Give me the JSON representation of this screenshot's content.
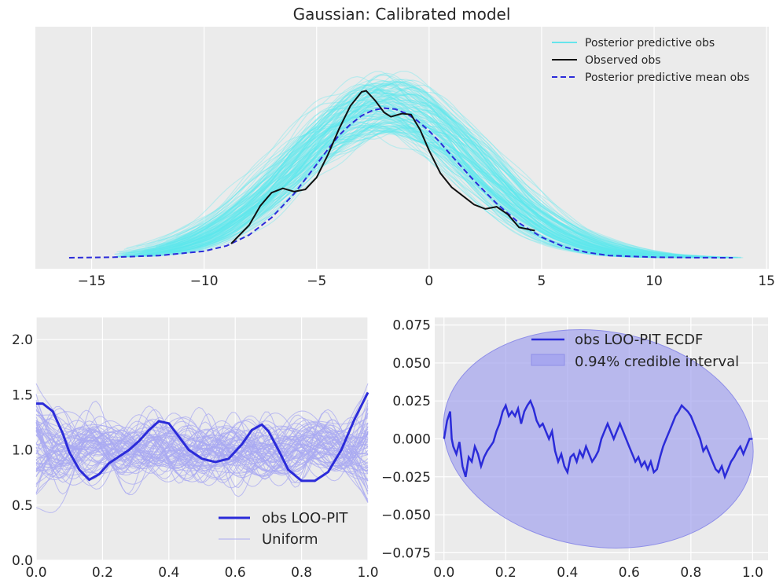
{
  "chart_data": [
    {
      "type": "line",
      "title": "Gaussian: Calibrated model",
      "xlabel": "",
      "ylabel": "",
      "xlim": [
        -17.5,
        15.1
      ],
      "xticks": [
        -15,
        -10,
        -5,
        0,
        5,
        10,
        15
      ],
      "xtick_labels": [
        "−15",
        "−10",
        "−5",
        "0",
        "5",
        "10",
        "15"
      ],
      "y_tick_labels_shown": false,
      "grid": true,
      "legend_placement": "top-right",
      "legend": [
        {
          "label": "Posterior predictive obs",
          "color": "#66e5ec",
          "style": "solid"
        },
        {
          "label": "Observed obs",
          "color": "#000000",
          "style": "solid"
        },
        {
          "label": "Posterior predictive mean obs",
          "color": "#2b2bd9",
          "style": "dashed"
        }
      ],
      "series": [
        {
          "name": "Posterior predictive mean obs",
          "x": [
            -16.0,
            -14,
            -12,
            -10,
            -9,
            -8,
            -7,
            -6,
            -5,
            -4.5,
            -4,
            -3.5,
            -3,
            -2.5,
            -2,
            -1.5,
            -1,
            -0.5,
            0,
            0.5,
            1,
            2,
            3,
            4,
            5,
            6,
            7,
            8,
            10,
            12,
            13.5
          ],
          "y": [
            0.0,
            0.0005,
            0.002,
            0.006,
            0.011,
            0.021,
            0.037,
            0.059,
            0.086,
            0.1,
            0.113,
            0.123,
            0.131,
            0.136,
            0.138,
            0.137,
            0.133,
            0.126,
            0.117,
            0.106,
            0.094,
            0.071,
            0.05,
            0.032,
            0.019,
            0.01,
            0.005,
            0.002,
            0.0005,
            0.0001,
            0.0
          ]
        },
        {
          "name": "Observed obs",
          "x": [
            -8.8,
            -8,
            -7.5,
            -7,
            -6.5,
            -6,
            -5.5,
            -5,
            -4.5,
            -4,
            -3.5,
            -3,
            -2.8,
            -2.4,
            -2,
            -1.7,
            -1.2,
            -0.8,
            -0.4,
            0,
            0.5,
            1,
            1.5,
            2,
            2.5,
            3,
            3.5,
            4,
            4.7
          ],
          "y": [
            0.013,
            0.03,
            0.048,
            0.06,
            0.064,
            0.061,
            0.063,
            0.074,
            0.095,
            0.119,
            0.14,
            0.153,
            0.154,
            0.145,
            0.134,
            0.13,
            0.133,
            0.132,
            0.118,
            0.099,
            0.078,
            0.065,
            0.057,
            0.049,
            0.045,
            0.047,
            0.04,
            0.028,
            0.025
          ]
        }
      ],
      "posterior_predictive_band": {
        "name": "Posterior predictive obs",
        "description_only": true
      }
    },
    {
      "type": "line",
      "title": "",
      "xlabel": "",
      "ylabel": "",
      "xlim": [
        0,
        1
      ],
      "ylim": [
        0,
        2.2
      ],
      "xticks": [
        0.0,
        0.2,
        0.4,
        0.6,
        0.8,
        1.0
      ],
      "xtick_labels": [
        "0.0",
        "0.2",
        "0.4",
        "0.6",
        "0.8",
        "1.0"
      ],
      "yticks": [
        0.0,
        0.5,
        1.0,
        1.5,
        2.0
      ],
      "ytick_labels": [
        "0.0",
        "0.5",
        "1.0",
        "1.5",
        "2.0"
      ],
      "grid": true,
      "legend_placement": "bottom-right",
      "legend": [
        {
          "label": "obs LOO-PIT",
          "color": "#2b2bd9",
          "style": "solid-thick"
        },
        {
          "label": "Uniform",
          "color": "#a9a9f2",
          "style": "solid-thin"
        }
      ],
      "series": [
        {
          "name": "obs LOO-PIT",
          "x": [
            0,
            0.02,
            0.05,
            0.08,
            0.1,
            0.13,
            0.16,
            0.19,
            0.22,
            0.25,
            0.28,
            0.31,
            0.34,
            0.37,
            0.4,
            0.43,
            0.46,
            0.5,
            0.54,
            0.58,
            0.62,
            0.65,
            0.68,
            0.7,
            0.73,
            0.76,
            0.8,
            0.84,
            0.88,
            0.92,
            0.96,
            1.0
          ],
          "y": [
            1.42,
            1.42,
            1.35,
            1.15,
            0.98,
            0.82,
            0.73,
            0.78,
            0.88,
            0.94,
            1.0,
            1.08,
            1.18,
            1.26,
            1.24,
            1.12,
            1.0,
            0.92,
            0.89,
            0.92,
            1.05,
            1.18,
            1.23,
            1.17,
            1.0,
            0.82,
            0.72,
            0.72,
            0.8,
            1.0,
            1.28,
            1.52
          ]
        }
      ],
      "uniform_samples": {
        "name": "Uniform",
        "description_only": true
      }
    },
    {
      "type": "line",
      "title": "",
      "xlabel": "",
      "ylabel": "",
      "xlim": [
        -0.03,
        1.05
      ],
      "ylim": [
        -0.08,
        0.08
      ],
      "xticks": [
        0.0,
        0.2,
        0.4,
        0.6,
        0.8,
        1.0
      ],
      "xtick_labels": [
        "0.0",
        "0.2",
        "0.4",
        "0.6",
        "0.8",
        "1.0"
      ],
      "yticks": [
        -0.075,
        -0.05,
        -0.025,
        0.0,
        0.025,
        0.05,
        0.075
      ],
      "ytick_labels": [
        "−0.075",
        "−0.050",
        "−0.025",
        "0.000",
        "0.025",
        "0.050",
        "0.075"
      ],
      "grid": true,
      "legend_placement": "top-right",
      "legend": [
        {
          "label": "obs LOO-PIT ECDF",
          "color": "#2b2bd9",
          "style": "line"
        },
        {
          "label": "0.94% credible interval",
          "color": "#a3a3ee",
          "style": "patch"
        }
      ],
      "series": [
        {
          "name": "obs LOO-PIT ECDF",
          "x": [
            0.0,
            0.01,
            0.02,
            0.025,
            0.03,
            0.04,
            0.05,
            0.06,
            0.07,
            0.08,
            0.09,
            0.1,
            0.11,
            0.12,
            0.13,
            0.14,
            0.15,
            0.16,
            0.17,
            0.18,
            0.19,
            0.2,
            0.21,
            0.22,
            0.23,
            0.24,
            0.25,
            0.26,
            0.27,
            0.28,
            0.29,
            0.3,
            0.31,
            0.32,
            0.33,
            0.34,
            0.35,
            0.36,
            0.37,
            0.38,
            0.39,
            0.4,
            0.41,
            0.42,
            0.43,
            0.44,
            0.45,
            0.46,
            0.47,
            0.48,
            0.49,
            0.5,
            0.51,
            0.52,
            0.53,
            0.54,
            0.55,
            0.56,
            0.57,
            0.58,
            0.59,
            0.6,
            0.61,
            0.62,
            0.63,
            0.64,
            0.65,
            0.66,
            0.67,
            0.68,
            0.69,
            0.7,
            0.71,
            0.72,
            0.73,
            0.74,
            0.75,
            0.76,
            0.77,
            0.78,
            0.79,
            0.8,
            0.81,
            0.82,
            0.83,
            0.84,
            0.85,
            0.86,
            0.87,
            0.88,
            0.89,
            0.9,
            0.91,
            0.92,
            0.93,
            0.94,
            0.95,
            0.96,
            0.97,
            0.98,
            0.99,
            1.0
          ],
          "y": [
            0.0,
            0.012,
            0.018,
            0.0,
            -0.005,
            -0.01,
            -0.002,
            -0.018,
            -0.025,
            -0.012,
            -0.015,
            -0.005,
            -0.01,
            -0.018,
            -0.012,
            -0.008,
            -0.005,
            -0.002,
            0.005,
            0.01,
            0.018,
            0.022,
            0.015,
            0.018,
            0.015,
            0.02,
            0.01,
            0.018,
            0.022,
            0.025,
            0.02,
            0.012,
            0.008,
            0.01,
            0.005,
            0.0,
            0.005,
            -0.008,
            -0.015,
            -0.01,
            -0.018,
            -0.022,
            -0.012,
            -0.01,
            -0.015,
            -0.008,
            -0.012,
            -0.005,
            -0.01,
            -0.015,
            -0.012,
            -0.008,
            0.0,
            0.005,
            0.01,
            0.005,
            0.0,
            0.005,
            0.01,
            0.005,
            0.0,
            -0.005,
            -0.01,
            -0.015,
            -0.012,
            -0.018,
            -0.015,
            -0.02,
            -0.015,
            -0.022,
            -0.02,
            -0.012,
            -0.005,
            0.0,
            0.005,
            0.01,
            0.015,
            0.018,
            0.022,
            0.02,
            0.018,
            0.015,
            0.01,
            0.005,
            0.0,
            -0.008,
            -0.005,
            -0.01,
            -0.015,
            -0.02,
            -0.022,
            -0.018,
            -0.025,
            -0.02,
            -0.015,
            -0.012,
            -0.008,
            -0.005,
            -0.01,
            -0.005,
            0.0,
            0.0
          ]
        }
      ],
      "credible_interval": {
        "name": "0.94% credible interval",
        "description_only": true
      }
    }
  ]
}
